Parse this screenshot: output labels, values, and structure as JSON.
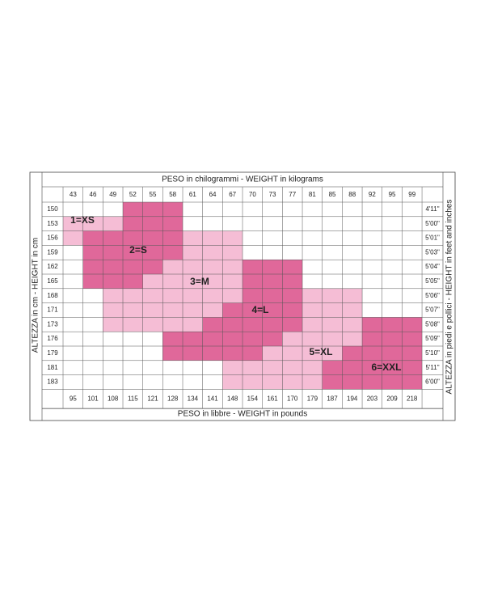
{
  "top_label": "PESO in chilogrammi -  WEIGHT in kilograms",
  "bottom_label": "PESO in libbre -  WEIGHT in pounds",
  "left_label": "ALTEZZA in cm  -  HEIGHT in cm",
  "right_label": "ALTEZZA in piedi e pollici - HEIGHT in feet and inches",
  "kg": [
    "43",
    "46",
    "49",
    "52",
    "55",
    "58",
    "61",
    "64",
    "67",
    "70",
    "73",
    "77",
    "81",
    "85",
    "88",
    "92",
    "95",
    "99"
  ],
  "lb": [
    "95",
    "101",
    "108",
    "115",
    "121",
    "128",
    "134",
    "141",
    "148",
    "154",
    "161",
    "170",
    "179",
    "187",
    "194",
    "203",
    "209",
    "218"
  ],
  "cm": [
    "150",
    "153",
    "156",
    "159",
    "162",
    "165",
    "168",
    "171",
    "173",
    "176",
    "179",
    "181",
    "183"
  ],
  "ft": [
    "4'11\"",
    "5'00\"",
    "5'01\"",
    "5'03\"",
    "5'04\"",
    "5'05\"",
    "5'06\"",
    "5'07\"",
    "5'08\"",
    "5'09\"",
    "5'10\"",
    "5'11\"",
    "6'00\""
  ],
  "sizes": [
    "1=XS",
    "2=S",
    "3=M",
    "4=L",
    "5=XL",
    "6=XXL"
  ]
}
